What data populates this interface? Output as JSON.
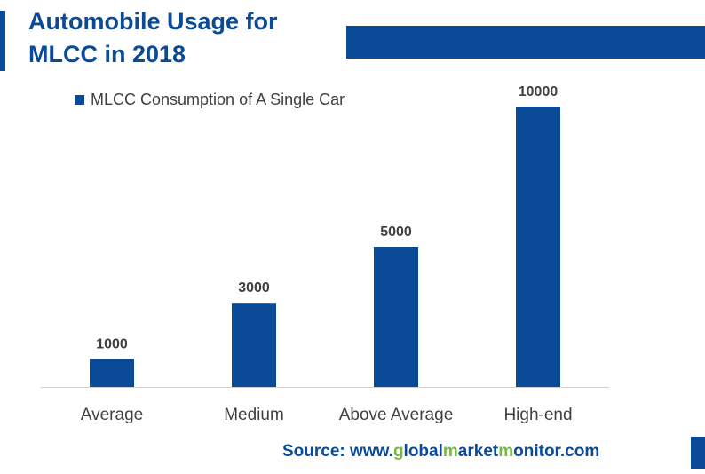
{
  "title_line1": "Automobile Usage for",
  "title_line2": "MLCC in 2018",
  "source": {
    "prefix": "Source: www.",
    "parts": [
      {
        "text": "g",
        "green": true
      },
      {
        "text": "lobal",
        "green": false
      },
      {
        "text": "m",
        "green": true
      },
      {
        "text": "arket",
        "green": false
      },
      {
        "text": "m",
        "green": true
      },
      {
        "text": "onitor.com",
        "green": false
      }
    ]
  },
  "colors": {
    "brand_blue": "#0b4a96",
    "accent_green": "#7ab648",
    "axis": "#d0d0d0",
    "label_text": "#404040"
  },
  "chart_data": {
    "type": "bar",
    "categories": [
      "Average",
      "Medium",
      "Above Average",
      "High-end"
    ],
    "series": [
      {
        "name": "MLCC Consumption of A Single Car",
        "values": [
          1000,
          3000,
          5000,
          10000
        ]
      }
    ],
    "data_labels": [
      "1000",
      "3000",
      "5000",
      "10000"
    ],
    "ylim": [
      0,
      10000
    ],
    "legend_position": "top-left",
    "grid": false
  }
}
